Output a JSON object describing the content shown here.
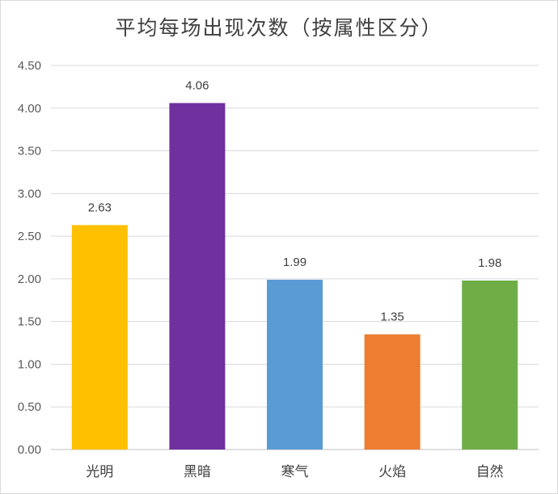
{
  "chart_data": {
    "type": "bar",
    "title": "平均每场出现次数（按属性区分）",
    "categories": [
      "光明",
      "黑暗",
      "寒气",
      "火焰",
      "自然"
    ],
    "values": [
      2.63,
      4.06,
      1.99,
      1.35,
      1.98
    ],
    "data_labels": [
      "2.63",
      "4.06",
      "1.99",
      "1.35",
      "1.98"
    ],
    "colors": [
      "#FFC000",
      "#7030A0",
      "#5B9BD5",
      "#ED7D31",
      "#70AD47"
    ],
    "xlabel": "",
    "ylabel": "",
    "ylim": [
      0,
      4.5
    ],
    "yticks": [
      "0.00",
      "0.50",
      "1.00",
      "1.50",
      "2.00",
      "2.50",
      "3.00",
      "3.50",
      "4.00",
      "4.50"
    ],
    "grid": true,
    "legend": "none"
  }
}
